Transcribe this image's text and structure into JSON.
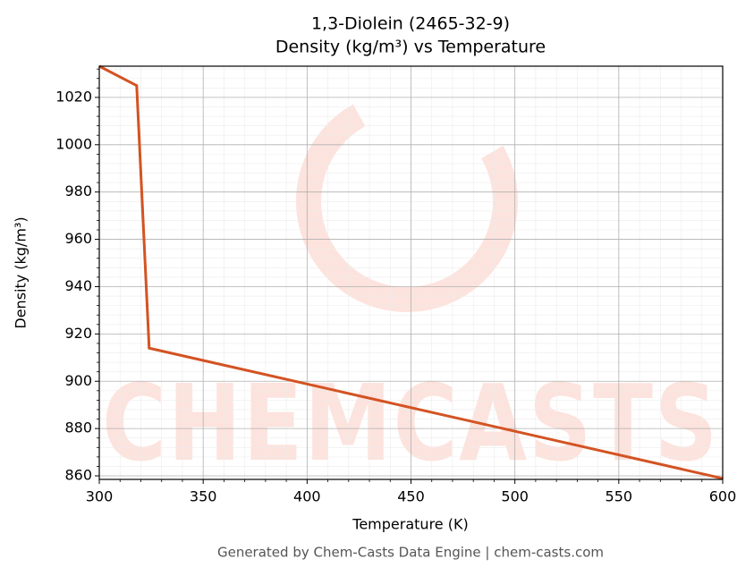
{
  "chart_data": {
    "type": "line",
    "title": "1,3-Diolein (2465-32-9)",
    "subtitle": "Density (kg/m³) vs Temperature",
    "x_label": "Temperature (K)",
    "y_label": "Density (kg/m³)",
    "footer": "Generated by Chem-Casts Data Engine | chem-casts.com",
    "watermark": "CHEMCASTS",
    "x": [
      300,
      318,
      324,
      600
    ],
    "series": [
      {
        "name": "Density",
        "color": "#d35322",
        "values": [
          1033.2,
          1025,
          914,
          858.9
        ]
      }
    ],
    "xlim": [
      300,
      600
    ],
    "ylim": [
      858.5,
      1033.2
    ],
    "xticks": [
      300,
      350,
      400,
      450,
      500,
      550,
      600
    ],
    "yticks": [
      860,
      880,
      900,
      920,
      940,
      960,
      980,
      1000,
      1020
    ],
    "xminor": [
      310,
      320,
      330,
      340,
      360,
      370,
      380,
      390,
      410,
      420,
      430,
      440,
      460,
      470,
      480,
      490,
      510,
      520,
      530,
      540,
      560,
      570,
      580,
      590
    ],
    "yminor": [
      864,
      868,
      872,
      876,
      884,
      888,
      892,
      896,
      904,
      908,
      912,
      916,
      924,
      928,
      932,
      936,
      944,
      948,
      952,
      956,
      964,
      968,
      972,
      976,
      984,
      988,
      992,
      996,
      1004,
      1008,
      1012,
      1016,
      1024,
      1028,
      1032
    ],
    "grid": true
  }
}
